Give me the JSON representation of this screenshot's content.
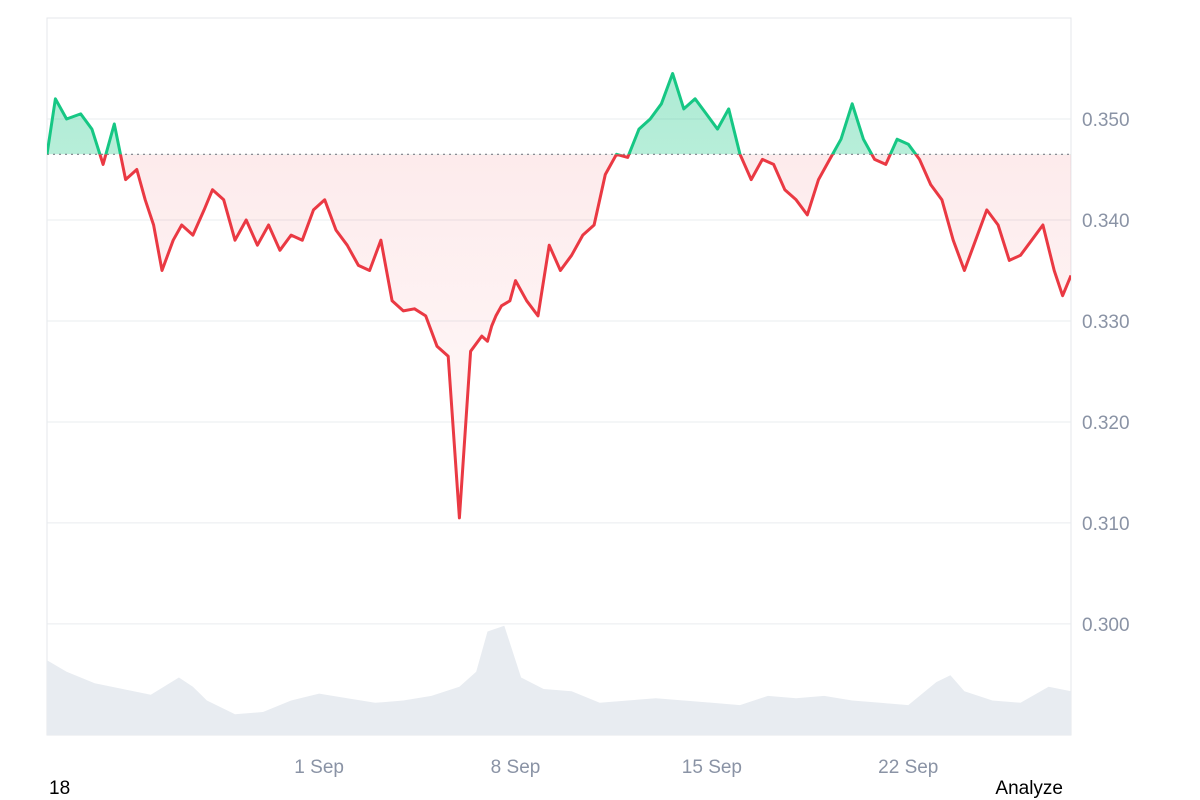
{
  "chart_data": {
    "type": "area",
    "baseline": 0.3465,
    "ylim": [
      0.289,
      0.36
    ],
    "yticks": [
      "0.300",
      "0.310",
      "0.320",
      "0.330",
      "0.340",
      "0.350"
    ],
    "ytick_values": [
      0.3,
      0.31,
      0.32,
      0.33,
      0.34,
      0.35
    ],
    "x_range_days": [
      -8.7,
      27.8
    ],
    "xticks": [
      {
        "label": "1 Sep",
        "day": 1
      },
      {
        "label": "8 Sep",
        "day": 8
      },
      {
        "label": "15 Sep",
        "day": 15
      },
      {
        "label": "22 Sep",
        "day": 22
      }
    ],
    "price_series": {
      "day": [
        -8.7,
        -8.4,
        -8.0,
        -7.5,
        -7.1,
        -6.7,
        -6.3,
        -5.9,
        -5.5,
        -5.2,
        -4.9,
        -4.6,
        -4.2,
        -3.9,
        -3.5,
        -3.1,
        -2.8,
        -2.4,
        -2.0,
        -1.6,
        -1.2,
        -0.8,
        -0.4,
        0.0,
        0.4,
        0.8,
        1.2,
        1.6,
        2.0,
        2.4,
        2.8,
        3.2,
        3.6,
        4.0,
        4.4,
        4.8,
        5.2,
        5.6,
        6.0,
        6.4,
        6.8,
        7.0,
        7.15,
        7.3,
        7.5,
        7.8,
        8.0,
        8.4,
        8.8,
        9.2,
        9.6,
        10.0,
        10.4,
        10.8,
        11.2,
        11.6,
        12.0,
        12.4,
        12.8,
        13.2,
        13.6,
        14.0,
        14.4,
        14.8,
        15.2,
        15.6,
        16.0,
        16.4,
        16.8,
        17.2,
        17.6,
        18.0,
        18.4,
        18.8,
        19.2,
        19.6,
        20.0,
        20.4,
        20.8,
        21.2,
        21.6,
        22.0,
        22.4,
        22.8,
        23.2,
        23.6,
        24.0,
        24.4,
        24.8,
        25.2,
        25.6,
        26.0,
        26.4,
        26.8,
        27.2,
        27.5,
        27.8
      ],
      "price": [
        0.3465,
        0.352,
        0.35,
        0.3505,
        0.349,
        0.3455,
        0.3495,
        0.344,
        0.345,
        0.342,
        0.3395,
        0.335,
        0.338,
        0.3395,
        0.3385,
        0.341,
        0.343,
        0.342,
        0.338,
        0.34,
        0.3375,
        0.3395,
        0.337,
        0.3385,
        0.338,
        0.341,
        0.342,
        0.339,
        0.3375,
        0.3355,
        0.335,
        0.338,
        0.332,
        0.331,
        0.3312,
        0.3305,
        0.3275,
        0.3265,
        0.3105,
        0.327,
        0.3285,
        0.328,
        0.3295,
        0.3305,
        0.3315,
        0.332,
        0.334,
        0.332,
        0.3305,
        0.3375,
        0.335,
        0.3365,
        0.3385,
        0.3395,
        0.3445,
        0.3465,
        0.3462,
        0.349,
        0.35,
        0.3515,
        0.3545,
        0.351,
        0.352,
        0.3505,
        0.349,
        0.351,
        0.3465,
        0.344,
        0.346,
        0.3455,
        0.343,
        0.342,
        0.3405,
        0.344,
        0.346,
        0.348,
        0.3515,
        0.348,
        0.346,
        0.3455,
        0.348,
        0.3475,
        0.346,
        0.3435,
        0.342,
        0.338,
        0.335,
        0.338,
        0.341,
        0.3395,
        0.336,
        0.3365,
        0.338,
        0.3395,
        0.335,
        0.3325,
        0.3345
      ]
    },
    "volume_series": {
      "day": [
        -8.7,
        -8.0,
        -7.0,
        -6.0,
        -5.0,
        -4.0,
        -3.5,
        -3.0,
        -2.0,
        -1.0,
        0.0,
        1.0,
        2.0,
        3.0,
        4.0,
        5.0,
        6.0,
        6.6,
        7.0,
        7.6,
        8.2,
        9.0,
        10.0,
        11.0,
        12.0,
        13.0,
        14.0,
        15.0,
        16.0,
        17.0,
        18.0,
        19.0,
        20.0,
        21.0,
        22.0,
        23.0,
        23.5,
        24.0,
        25.0,
        26.0,
        27.0,
        27.8
      ],
      "share": [
        0.65,
        0.55,
        0.45,
        0.4,
        0.35,
        0.5,
        0.42,
        0.3,
        0.18,
        0.2,
        0.3,
        0.36,
        0.32,
        0.28,
        0.3,
        0.34,
        0.42,
        0.55,
        0.9,
        0.95,
        0.5,
        0.4,
        0.38,
        0.28,
        0.3,
        0.32,
        0.3,
        0.28,
        0.26,
        0.34,
        0.32,
        0.34,
        0.3,
        0.28,
        0.26,
        0.46,
        0.52,
        0.38,
        0.3,
        0.28,
        0.42,
        0.38
      ]
    },
    "colors": {
      "up_line": "#16c784",
      "down_line": "#ea3943",
      "up_fill": "#16c784",
      "down_fill": "#ea3943",
      "volume_fill": "#e8ecf1",
      "grid": "#e9ecef",
      "baseline": "#7a7f87",
      "tick": "#8a93a5"
    }
  },
  "footer": {
    "left_text": "18",
    "right_text": "Analyze"
  }
}
